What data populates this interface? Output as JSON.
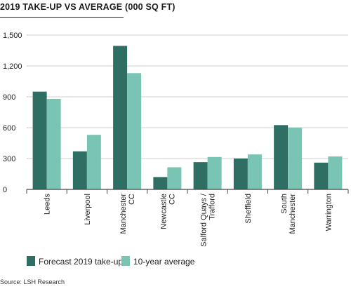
{
  "title": "2019 TAKE-UP VS AVERAGE (000 SQ FT)",
  "source": "Source: LSH Research",
  "colors": {
    "forecast": "#2f6e63",
    "average": "#7ac4b4",
    "grid": "#cfcfcf",
    "axis": "#444444"
  },
  "chart_data": {
    "type": "bar",
    "title": "2019 TAKE-UP VS AVERAGE (000 SQ FT)",
    "xlabel": "",
    "ylabel": "",
    "ylim": [
      0,
      1500
    ],
    "yticks": [
      0,
      300,
      600,
      900,
      1200,
      1500
    ],
    "ytick_labels": [
      "0",
      "300",
      "600",
      "900",
      "1,200",
      "1,500"
    ],
    "grid": true,
    "legend_position": "bottom",
    "categories": [
      "Leeds",
      "Liverpool",
      "Manchester CC",
      "Newcastle CC",
      "Salford Quays / Trafford",
      "Sheffield",
      "South Manchester",
      "Warrington"
    ],
    "category_label_lines": [
      [
        "Leeds"
      ],
      [
        "Liverpool"
      ],
      [
        "Manchester",
        "CC"
      ],
      [
        "Newcastle",
        "CC"
      ],
      [
        "Salford Quays /",
        "Trafford"
      ],
      [
        "Sheffield"
      ],
      [
        "South",
        "Manchester"
      ],
      [
        "Warrington"
      ]
    ],
    "series": [
      {
        "name": "Forecast 2019 take-up",
        "values": [
          950,
          370,
          1395,
          120,
          265,
          300,
          625,
          260
        ]
      },
      {
        "name": "10-year average",
        "values": [
          880,
          530,
          1130,
          215,
          315,
          340,
          600,
          320
        ]
      }
    ]
  }
}
